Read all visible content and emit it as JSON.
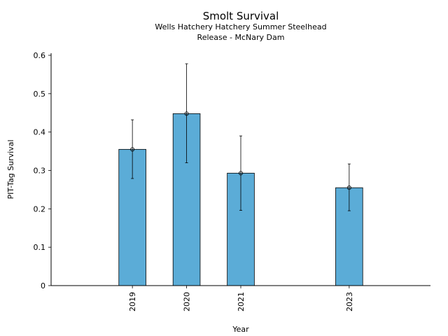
{
  "chart_data": {
    "type": "bar",
    "title": "Smolt Survival",
    "subtitle_lines": [
      "Wells Hatchery Hatchery Summer Steelhead",
      "Release - McNary Dam"
    ],
    "xlabel": "Year",
    "ylabel": "PIT-Tag Survival",
    "x_domain": [
      2017.5,
      2024.5
    ],
    "ylim": [
      0,
      0.6
    ],
    "yticks": [
      0,
      0.1,
      0.2,
      0.3,
      0.4,
      0.5,
      0.6
    ],
    "ytick_labels": [
      "0",
      "0.1",
      "0.2",
      "0.3",
      "0.4",
      "0.5",
      "0.6"
    ],
    "categories": [
      "2019",
      "2020",
      "2021",
      "2023"
    ],
    "x": [
      2019,
      2020,
      2021,
      2023
    ],
    "values": [
      0.355,
      0.448,
      0.293,
      0.255
    ],
    "error_low": [
      0.279,
      0.32,
      0.196,
      0.195
    ],
    "error_high": [
      0.432,
      0.578,
      0.39,
      0.317
    ],
    "bar_color": "#5bacd7",
    "grid": false
  }
}
